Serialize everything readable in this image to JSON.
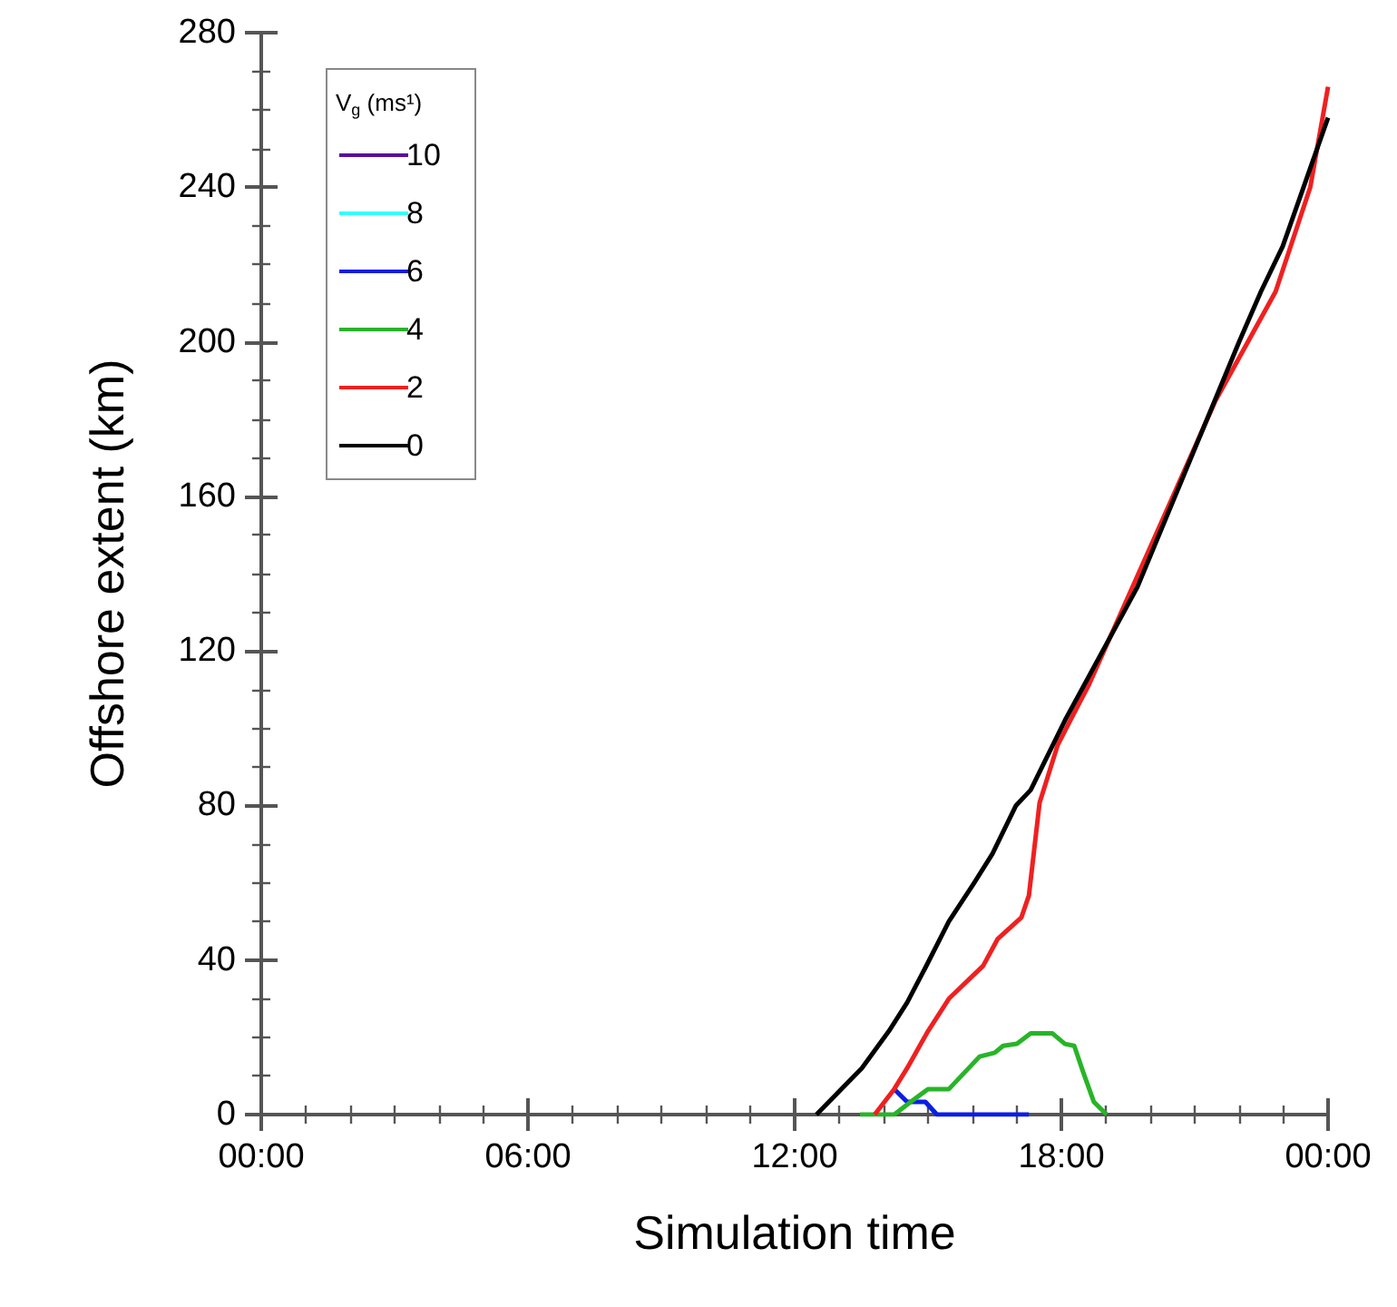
{
  "chart_data": {
    "type": "line",
    "xlabel": "Simulation time",
    "ylabel": "Offshore extent (km)",
    "legend_title": "V$_{g}$ (ms¹)",
    "legend": "top left",
    "grid": false,
    "marker": "none",
    "line_style": "solid",
    "xlim": [
      0,
      24
    ],
    "ylim": [
      0,
      280
    ],
    "xticks": [
      {
        "value": 0,
        "label": "00:00"
      },
      {
        "value": 1,
        "label": null
      },
      {
        "value": 2,
        "label": null
      },
      {
        "value": 3,
        "label": null
      },
      {
        "value": 4,
        "label": null
      },
      {
        "value": 5,
        "label": null
      },
      {
        "value": 6,
        "label": "06:00"
      },
      {
        "value": 7,
        "label": null
      },
      {
        "value": 8,
        "label": null
      },
      {
        "value": 9,
        "label": null
      },
      {
        "value": 10,
        "label": null
      },
      {
        "value": 11,
        "label": null
      },
      {
        "value": 12,
        "label": "12:00"
      },
      {
        "value": 13,
        "label": null
      },
      {
        "value": 14,
        "label": null
      },
      {
        "value": 15,
        "label": null
      },
      {
        "value": 16,
        "label": null
      },
      {
        "value": 17,
        "label": null
      },
      {
        "value": 18,
        "label": "18:00"
      },
      {
        "value": 19,
        "label": null
      },
      {
        "value": 20,
        "label": null
      },
      {
        "value": 21,
        "label": null
      },
      {
        "value": 22,
        "label": null
      },
      {
        "value": 23,
        "label": null
      },
      {
        "value": 24,
        "label": "00:00"
      }
    ],
    "yticks": [
      0,
      {
        "value": 10,
        "label": null
      },
      {
        "value": 20,
        "label": null
      },
      {
        "value": 30,
        "label": null
      },
      40,
      {
        "value": 50,
        "label": null
      },
      {
        "value": 60,
        "label": null
      },
      {
        "value": 70,
        "label": null
      },
      80,
      {
        "value": 90,
        "label": null
      },
      {
        "value": 100,
        "label": null
      },
      {
        "value": 110,
        "label": null
      },
      120,
      {
        "value": 130,
        "label": null
      },
      {
        "value": 140,
        "label": null
      },
      {
        "value": 150,
        "label": null
      },
      160,
      {
        "value": 170,
        "label": null
      },
      {
        "value": 180,
        "label": null
      },
      {
        "value": 190,
        "label": null
      },
      200,
      {
        "value": 210,
        "label": null
      },
      {
        "value": 220,
        "label": null
      },
      {
        "value": 230,
        "label": null
      },
      240,
      {
        "value": 250,
        "label": null
      },
      {
        "value": 260,
        "label": null
      },
      {
        "value": 270,
        "label": null
      },
      280
    ],
    "series": [
      {
        "name": "10",
        "color": "#5b0a9e"
      },
      {
        "name": "8",
        "color": "#33ffff"
      },
      {
        "name": "6",
        "color": "#0a1ee6",
        "x": [
          14.24,
          14.53,
          14.94,
          15.2,
          17.27
        ],
        "values": [
          6.6,
          3.3,
          3.3,
          0,
          0
        ]
      },
      {
        "name": "4",
        "color": "#28b428",
        "x": [
          13.47,
          14.24,
          14.61,
          15.0,
          15.47,
          16.16,
          16.5,
          16.69,
          17.0,
          17.31,
          17.8,
          18.08,
          18.29,
          18.49,
          18.73,
          19.02
        ],
        "values": [
          0,
          0,
          3.3,
          6.6,
          6.6,
          15,
          16,
          17.8,
          18.3,
          21,
          21,
          18.3,
          17.8,
          11,
          3.3,
          0
        ]
      },
      {
        "name": "2",
        "color": "#f02020",
        "x": [
          13.8,
          14.24,
          14.53,
          15.0,
          15.47,
          16.24,
          16.57,
          17.1,
          17.27,
          17.51,
          17.92,
          18.29,
          18.61,
          21.47,
          22.82,
          23.6,
          24
        ],
        "values": [
          0,
          6.6,
          12,
          21.6,
          30,
          38.5,
          45.5,
          51,
          56.7,
          80.7,
          95.7,
          104,
          111,
          184.8,
          213,
          240,
          266
        ]
      },
      {
        "name": "0",
        "color": "#000000",
        "x": [
          12.49,
          13.51,
          14.12,
          14.53,
          14.94,
          15.47,
          16.04,
          16.45,
          16.98,
          17.31,
          18.08,
          19.71,
          22.0,
          22.49,
          22.98,
          24
        ],
        "values": [
          0,
          12,
          21.6,
          29,
          38,
          50,
          60,
          67.5,
          80,
          84,
          102,
          136.5,
          200,
          213,
          224.7,
          258
        ]
      }
    ]
  }
}
